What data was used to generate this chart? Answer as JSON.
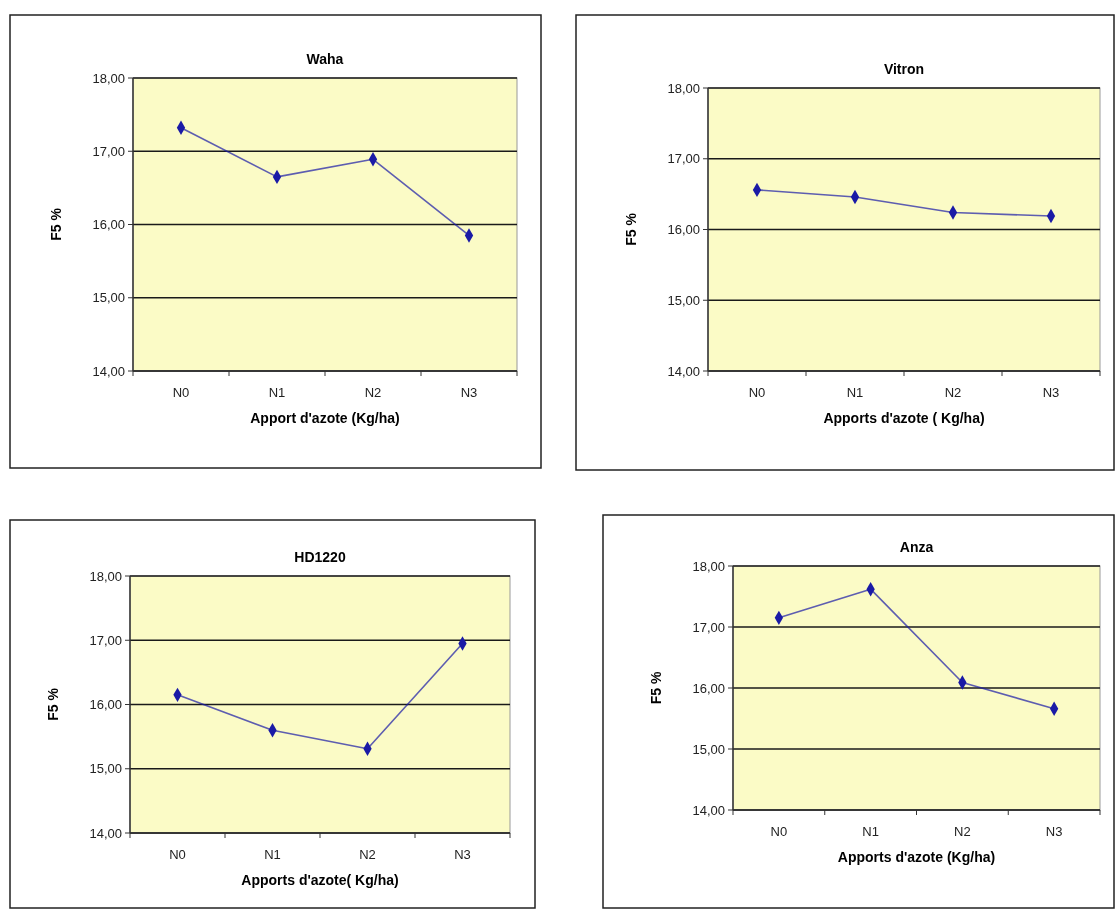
{
  "chart_data": [
    {
      "type": "line",
      "title": "Waha",
      "xlabel": "Apport d'azote (Kg/ha)",
      "ylabel": "F5 %",
      "categories": [
        "N0",
        "N1",
        "N2",
        "N3"
      ],
      "series": [
        {
          "color": "#1a1aa6",
          "values": [
            17.32,
            16.65,
            16.89,
            15.85
          ]
        }
      ],
      "ylim": [
        14,
        18
      ],
      "yticks": [
        {
          "value": 14,
          "label": "14,00"
        },
        {
          "value": 15,
          "label": "15,00"
        },
        {
          "value": 16,
          "label": "16,00"
        },
        {
          "value": 17,
          "label": "17,00"
        },
        {
          "value": 18,
          "label": "18,00"
        }
      ],
      "grid": "y",
      "marker": "diamond"
    },
    {
      "type": "line",
      "title": "Vitron",
      "xlabel": "Apports d'azote ( Kg/ha)",
      "ylabel": "F5 %",
      "categories": [
        "N0",
        "N1",
        "N2",
        "N3"
      ],
      "series": [
        {
          "color": "#1a1aa6",
          "values": [
            16.56,
            16.46,
            16.24,
            16.19
          ]
        }
      ],
      "ylim": [
        14,
        18
      ],
      "yticks": [
        {
          "value": 14,
          "label": "14,00"
        },
        {
          "value": 15,
          "label": "15,00"
        },
        {
          "value": 16,
          "label": "16,00"
        },
        {
          "value": 17,
          "label": "17,00"
        },
        {
          "value": 18,
          "label": "18,00"
        }
      ],
      "grid": "y",
      "marker": "diamond"
    },
    {
      "type": "line",
      "title": "HD1220",
      "xlabel": "Apports d'azote( Kg/ha)",
      "ylabel": "F5 %",
      "categories": [
        "N0",
        "N1",
        "N2",
        "N3"
      ],
      "series": [
        {
          "color": "#1a1aa6",
          "values": [
            16.15,
            15.6,
            15.31,
            16.95
          ]
        }
      ],
      "ylim": [
        14,
        18
      ],
      "yticks": [
        {
          "value": 14,
          "label": "14,00"
        },
        {
          "value": 15,
          "label": "15,00"
        },
        {
          "value": 16,
          "label": "16,00"
        },
        {
          "value": 17,
          "label": "17,00"
        },
        {
          "value": 18,
          "label": "18,00"
        }
      ],
      "grid": "y",
      "marker": "diamond"
    },
    {
      "type": "line",
      "title": "Anza",
      "xlabel": "Apports d'azote (Kg/ha)",
      "ylabel": "F5 %",
      "categories": [
        "N0",
        "N1",
        "N2",
        "N3"
      ],
      "series": [
        {
          "color": "#1a1aa6",
          "values": [
            17.15,
            17.62,
            16.09,
            15.66
          ]
        }
      ],
      "ylim": [
        14,
        18
      ],
      "yticks": [
        {
          "value": 14,
          "label": "14,00"
        },
        {
          "value": 15,
          "label": "15,00"
        },
        {
          "value": 16,
          "label": "16,00"
        },
        {
          "value": 17,
          "label": "17,00"
        },
        {
          "value": 18,
          "label": "18,00"
        }
      ],
      "grid": "y",
      "marker": "diamond"
    }
  ]
}
